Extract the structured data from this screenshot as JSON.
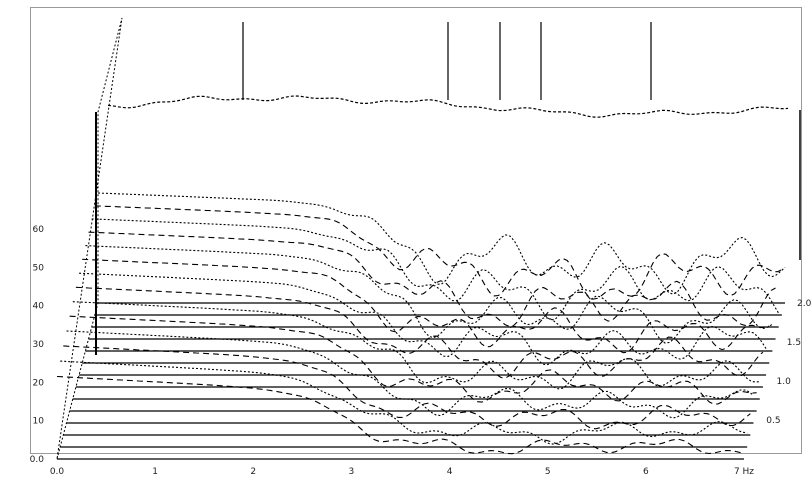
{
  "chart_data": {
    "type": "line",
    "subtype": "waterfall-3d",
    "title": "",
    "xlabel": "",
    "ylabel": "",
    "grid": false,
    "legend": "none",
    "colors": {
      "lines": "#000000",
      "frame": "#9a9a9a",
      "background": "#ffffff"
    },
    "x_tick_labels": [
      "0.0",
      "1",
      "2",
      "3",
      "4",
      "5",
      "6",
      "7 Hz"
    ],
    "x_tick_values": [
      0,
      1,
      2,
      3,
      4,
      5,
      6,
      7
    ],
    "y_tick_labels": [
      "0.0",
      "10",
      "20",
      "30",
      "40",
      "50",
      "60"
    ],
    "y_tick_values": [
      0,
      10,
      20,
      30,
      40,
      50,
      60
    ],
    "depth_tick_labels": [
      "0.5",
      "1.0",
      "1.5",
      "2.0 s"
    ],
    "depth_tick_values": [
      0.5,
      1.0,
      1.5,
      2.0
    ],
    "ylim": [
      0,
      60
    ],
    "xlim": [
      0,
      7
    ],
    "depth_lim": [
      0,
      2
    ],
    "series_count": 14
  }
}
